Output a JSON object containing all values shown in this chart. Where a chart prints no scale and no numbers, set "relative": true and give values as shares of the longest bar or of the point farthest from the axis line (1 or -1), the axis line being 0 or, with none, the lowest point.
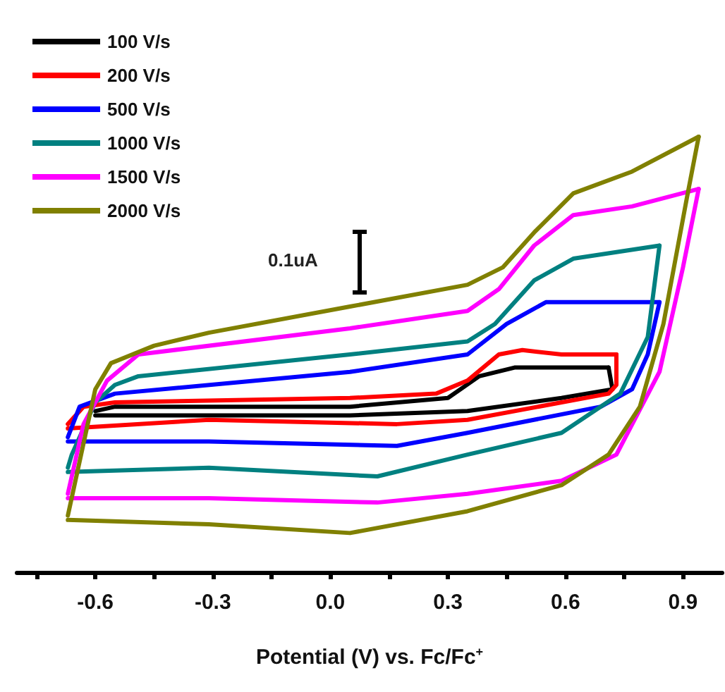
{
  "chart_data": {
    "type": "line",
    "relative": true,
    "xlabel": "Potential (V) vs. Fc/Fc$^{+}$",
    "xlim": [
      -0.8,
      1.0
    ],
    "xticks": [
      {
        "value": -0.75,
        "label": null
      },
      -0.6,
      {
        "value": -0.45,
        "label": null
      },
      -0.3,
      {
        "value": -0.15,
        "label": null
      },
      {
        "value": 0,
        "label": "0.0"
      },
      {
        "value": 0.15,
        "label": null
      },
      0.3,
      {
        "value": 0.45,
        "label": null
      },
      0.6,
      {
        "value": 0.75,
        "label": null
      },
      0.9
    ],
    "legend": "top left",
    "marker": "none",
    "line_style": "solid",
    "grid": false,
    "annotations": [
      "0.1uA"
    ],
    "series": [
      {
        "name": "100 V/s",
        "color": "#000000",
        "x": [
          -0.6,
          -0.55,
          0.05,
          0.3,
          0.38,
          0.47,
          0.71
        ],
        "values": [
          0.37,
          0.38,
          0.38,
          0.4,
          0.45,
          0.47,
          0.47
        ]
      },
      {
        "color": "#000000",
        "x": [
          0.71,
          0.72,
          0.59,
          0.35,
          0.05,
          -0.6
        ],
        "values": [
          0.47,
          0.42,
          0.4,
          0.37,
          0.36,
          0.36
        ]
      },
      {
        "name": "200 V/s",
        "color": "#ff0000",
        "x": [
          -0.67,
          -0.63,
          -0.55,
          0.05,
          0.27,
          0.35,
          0.43,
          0.49,
          0.59,
          0.73
        ],
        "values": [
          0.34,
          0.38,
          0.39,
          0.4,
          0.41,
          0.44,
          0.5,
          0.51,
          0.5,
          0.5
        ]
      },
      {
        "color": "#ff0000",
        "x": [
          0.73,
          0.73,
          0.71,
          0.59,
          0.35,
          0.17,
          -0.31,
          -0.67
        ],
        "values": [
          0.5,
          0.43,
          0.41,
          0.39,
          0.35,
          0.34,
          0.35,
          0.33
        ]
      },
      {
        "name": "500 V/s",
        "color": "#0000ff",
        "x": [
          -0.67,
          -0.64,
          -0.55,
          0.05,
          0.35,
          0.45,
          0.55,
          0.84
        ],
        "values": [
          0.31,
          0.38,
          0.41,
          0.46,
          0.5,
          0.57,
          0.62,
          0.62
        ]
      },
      {
        "color": "#0000ff",
        "x": [
          0.84,
          0.81,
          0.77,
          0.69,
          0.35,
          0.17,
          -0.31,
          -0.67
        ],
        "values": [
          0.62,
          0.5,
          0.42,
          0.38,
          0.32,
          0.29,
          0.3,
          0.3
        ]
      },
      {
        "name": "1000 V/s",
        "color": "#008080",
        "x": [
          -0.67,
          -0.66,
          -0.6,
          -0.55,
          -0.49,
          0.05,
          0.35,
          0.42,
          0.52,
          0.62,
          0.84
        ],
        "values": [
          0.24,
          0.27,
          0.39,
          0.43,
          0.45,
          0.5,
          0.53,
          0.57,
          0.67,
          0.72,
          0.75
        ]
      },
      {
        "color": "#008080",
        "x": [
          0.84,
          0.81,
          0.74,
          0.59,
          0.35,
          0.12,
          -0.31,
          -0.67
        ],
        "values": [
          0.75,
          0.54,
          0.41,
          0.32,
          0.27,
          0.22,
          0.24,
          0.23
        ]
      },
      {
        "name": "1500 V/s",
        "color": "#ff00ff",
        "x": [
          -0.67,
          -0.63,
          -0.57,
          -0.49,
          0.05,
          0.35,
          0.43,
          0.52,
          0.62,
          0.77,
          0.94
        ],
        "values": [
          0.18,
          0.34,
          0.44,
          0.5,
          0.56,
          0.6,
          0.65,
          0.75,
          0.82,
          0.84,
          0.88
        ]
      },
      {
        "color": "#ff00ff",
        "x": [
          0.94,
          0.9,
          0.84,
          0.73,
          0.59,
          0.35,
          0.12,
          -0.31,
          -0.67
        ],
        "values": [
          0.88,
          0.7,
          0.46,
          0.27,
          0.21,
          0.18,
          0.16,
          0.17,
          0.17
        ]
      },
      {
        "name": "2000 V/s",
        "color": "#808000",
        "x": [
          -0.67,
          -0.6,
          -0.56,
          -0.45,
          -0.31,
          0.05,
          0.35,
          0.44,
          0.52,
          0.62,
          0.77,
          0.94
        ],
        "values": [
          0.13,
          0.42,
          0.48,
          0.52,
          0.55,
          0.61,
          0.66,
          0.7,
          0.78,
          0.87,
          0.92,
          1.0
        ]
      },
      {
        "color": "#808000",
        "x": [
          0.94,
          0.91,
          0.85,
          0.79,
          0.71,
          0.59,
          0.35,
          0.05,
          -0.31,
          -0.67
        ],
        "values": [
          1.0,
          0.86,
          0.57,
          0.38,
          0.27,
          0.2,
          0.14,
          0.09,
          0.11,
          0.12
        ]
      }
    ]
  }
}
